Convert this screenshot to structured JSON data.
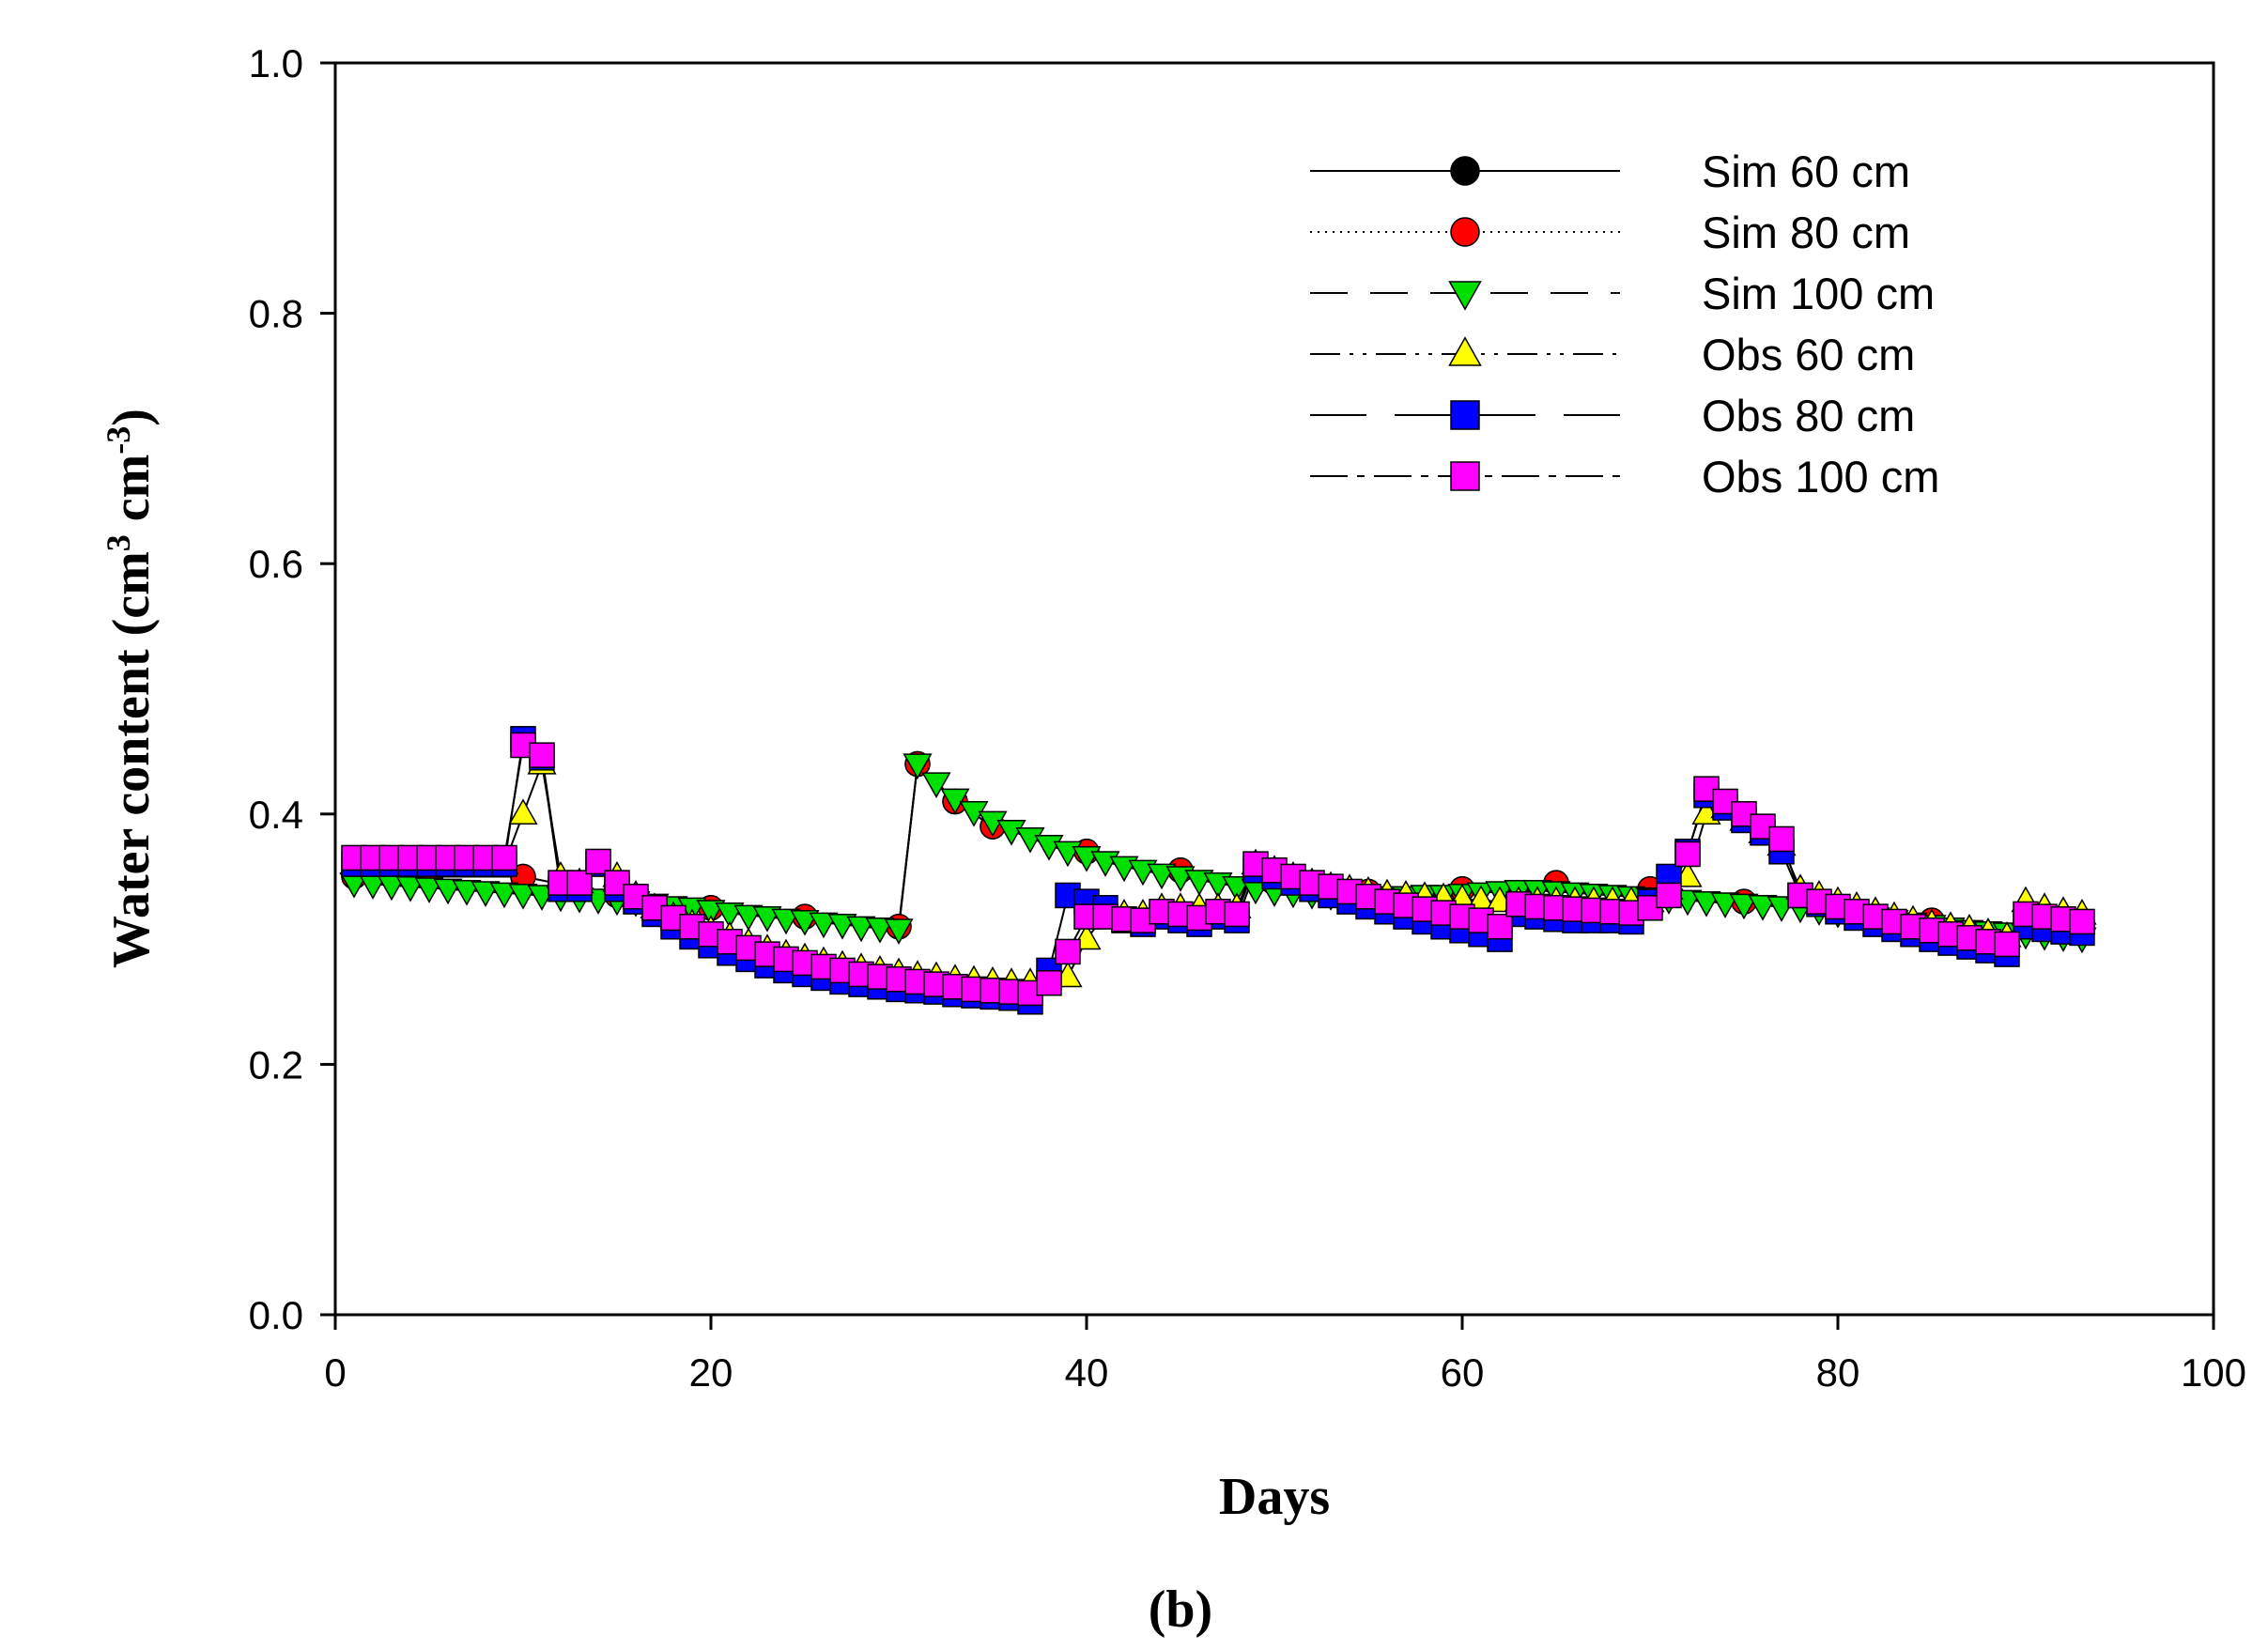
{
  "chart_data": {
    "type": "line",
    "caption": "(b)",
    "xlabel": "Days",
    "ylabel_main": "Water content (cm",
    "ylabel_sup1": "3",
    "ylabel_mid": " cm",
    "ylabel_sup2": "-3",
    "ylabel_end": ")",
    "xlim": [
      0,
      100
    ],
    "ylim": [
      0.0,
      1.0
    ],
    "xticks": [
      0,
      20,
      40,
      60,
      80,
      100
    ],
    "yticks": [
      0.0,
      0.2,
      0.4,
      0.6,
      0.8,
      1.0
    ],
    "xtick_labels": [
      "0",
      "20",
      "40",
      "60",
      "80",
      "100"
    ],
    "ytick_labels": [
      "0.0",
      "0.2",
      "0.4",
      "0.6",
      "0.8",
      "1.0"
    ],
    "legend_position": "top-right",
    "series": [
      {
        "name": "Sim 60 cm",
        "marker": "circle",
        "color": "#000000",
        "dash": "",
        "x": [
          1,
          5,
          10,
          15,
          20,
          25,
          30,
          31,
          33,
          35,
          40,
          45,
          50,
          55,
          60,
          65,
          70,
          75,
          80,
          85,
          90,
          93
        ],
        "y": [
          0.35,
          0.35,
          0.35,
          0.335,
          0.325,
          0.318,
          0.31,
          0.44,
          0.41,
          0.39,
          0.37,
          0.355,
          0.345,
          0.338,
          0.34,
          0.345,
          0.34,
          0.33,
          0.325,
          0.315,
          0.31,
          0.305
        ]
      },
      {
        "name": "Sim 80 cm",
        "marker": "circle",
        "color": "#ff0000",
        "dash": "2 6",
        "x": [
          1,
          5,
          10,
          15,
          20,
          25,
          30,
          31,
          33,
          35,
          40,
          45,
          50,
          55,
          60,
          65,
          70,
          75,
          80,
          85,
          90,
          93
        ],
        "y": [
          0.35,
          0.35,
          0.35,
          0.335,
          0.325,
          0.318,
          0.31,
          0.44,
          0.41,
          0.39,
          0.37,
          0.355,
          0.345,
          0.338,
          0.34,
          0.345,
          0.34,
          0.33,
          0.325,
          0.315,
          0.31,
          0.305
        ]
      },
      {
        "name": "Sim 100 cm",
        "marker": "triangle-down",
        "color": "#00e000",
        "dash": "40 24",
        "x": [
          1,
          2,
          3,
          4,
          5,
          6,
          7,
          8,
          9,
          10,
          11,
          12,
          13,
          14,
          15,
          16,
          17,
          18,
          19,
          20,
          21,
          22,
          23,
          24,
          25,
          26,
          27,
          28,
          29,
          30,
          31,
          32,
          33,
          34,
          35,
          36,
          37,
          38,
          39,
          40,
          41,
          42,
          43,
          44,
          45,
          46,
          47,
          48,
          49,
          50,
          51,
          52,
          53,
          54,
          55,
          56,
          57,
          58,
          59,
          60,
          61,
          62,
          63,
          64,
          65,
          66,
          67,
          68,
          69,
          70,
          71,
          72,
          73,
          74,
          75,
          76,
          77,
          78,
          79,
          80,
          81,
          82,
          83,
          84,
          85,
          86,
          87,
          88,
          89,
          90,
          91,
          92,
          93
        ],
        "y": [
          0.345,
          0.344,
          0.343,
          0.342,
          0.341,
          0.34,
          0.339,
          0.338,
          0.337,
          0.336,
          0.335,
          0.334,
          0.333,
          0.332,
          0.331,
          0.33,
          0.328,
          0.326,
          0.325,
          0.323,
          0.321,
          0.319,
          0.318,
          0.316,
          0.315,
          0.313,
          0.312,
          0.31,
          0.309,
          0.308,
          0.44,
          0.425,
          0.412,
          0.402,
          0.394,
          0.387,
          0.381,
          0.375,
          0.37,
          0.366,
          0.362,
          0.358,
          0.355,
          0.352,
          0.35,
          0.347,
          0.345,
          0.342,
          0.34,
          0.338,
          0.337,
          0.336,
          0.335,
          0.335,
          0.334,
          0.334,
          0.334,
          0.335,
          0.335,
          0.336,
          0.337,
          0.338,
          0.339,
          0.339,
          0.338,
          0.337,
          0.336,
          0.335,
          0.334,
          0.333,
          0.332,
          0.331,
          0.33,
          0.329,
          0.328,
          0.327,
          0.326,
          0.325,
          0.323,
          0.321,
          0.319,
          0.317,
          0.315,
          0.313,
          0.311,
          0.309,
          0.307,
          0.306,
          0.305,
          0.304,
          0.303,
          0.302,
          0.301
        ]
      },
      {
        "name": "Obs 60 cm",
        "marker": "triangle-up",
        "color": "#ffff00",
        "dash": "32 10 4 10 4 10",
        "x": [
          1,
          2,
          3,
          4,
          5,
          6,
          7,
          8,
          9,
          10,
          11,
          12,
          13,
          14,
          15,
          16,
          17,
          18,
          19,
          20,
          21,
          22,
          23,
          24,
          25,
          26,
          27,
          28,
          29,
          30,
          31,
          32,
          33,
          34,
          35,
          36,
          37,
          38,
          39,
          40,
          41,
          42,
          43,
          44,
          45,
          46,
          47,
          48,
          49,
          50,
          51,
          52,
          53,
          54,
          55,
          56,
          57,
          58,
          59,
          60,
          61,
          62,
          63,
          64,
          65,
          66,
          67,
          68,
          69,
          70,
          71,
          72,
          73,
          74,
          75,
          76,
          77,
          78,
          79,
          80,
          81,
          82,
          83,
          84,
          85,
          86,
          87,
          88,
          89,
          90,
          91,
          92,
          93
        ],
        "y": [
          0.36,
          0.36,
          0.36,
          0.36,
          0.36,
          0.36,
          0.36,
          0.36,
          0.36,
          0.4,
          0.44,
          0.35,
          0.345,
          0.36,
          0.35,
          0.335,
          0.325,
          0.318,
          0.312,
          0.307,
          0.302,
          0.297,
          0.292,
          0.288,
          0.285,
          0.282,
          0.279,
          0.277,
          0.275,
          0.273,
          0.271,
          0.27,
          0.268,
          0.267,
          0.266,
          0.265,
          0.265,
          0.27,
          0.27,
          0.3,
          0.32,
          0.32,
          0.32,
          0.325,
          0.325,
          0.325,
          0.325,
          0.325,
          0.36,
          0.355,
          0.35,
          0.345,
          0.342,
          0.34,
          0.338,
          0.336,
          0.335,
          0.334,
          0.333,
          0.332,
          0.331,
          0.33,
          0.33,
          0.33,
          0.33,
          0.33,
          0.33,
          0.33,
          0.33,
          0.33,
          0.34,
          0.35,
          0.4,
          0.405,
          0.395,
          0.385,
          0.375,
          0.34,
          0.335,
          0.33,
          0.326,
          0.322,
          0.318,
          0.315,
          0.312,
          0.31,
          0.308,
          0.305,
          0.302,
          0.33,
          0.325,
          0.322,
          0.32
        ]
      },
      {
        "name": "Obs 80 cm",
        "marker": "square",
        "color": "#0000ff",
        "dash": "60 30",
        "x": [
          1,
          2,
          3,
          4,
          5,
          6,
          7,
          8,
          9,
          10,
          11,
          12,
          13,
          14,
          15,
          16,
          17,
          18,
          19,
          20,
          21,
          22,
          23,
          24,
          25,
          26,
          27,
          28,
          29,
          30,
          31,
          32,
          33,
          34,
          35,
          36,
          37,
          38,
          39,
          40,
          41,
          42,
          43,
          44,
          45,
          46,
          47,
          48,
          49,
          50,
          51,
          52,
          53,
          54,
          55,
          56,
          57,
          58,
          59,
          60,
          61,
          62,
          63,
          64,
          65,
          66,
          67,
          68,
          69,
          70,
          71,
          72,
          73,
          74,
          75,
          76,
          77,
          78,
          79,
          80,
          81,
          82,
          83,
          84,
          85,
          86,
          87,
          88,
          89,
          90,
          91,
          92,
          93
        ],
        "y": [
          0.36,
          0.36,
          0.36,
          0.36,
          0.36,
          0.36,
          0.36,
          0.36,
          0.36,
          0.46,
          0.445,
          0.34,
          0.34,
          0.36,
          0.34,
          0.33,
          0.32,
          0.31,
          0.302,
          0.295,
          0.289,
          0.284,
          0.279,
          0.275,
          0.272,
          0.269,
          0.266,
          0.264,
          0.262,
          0.26,
          0.259,
          0.258,
          0.256,
          0.255,
          0.254,
          0.253,
          0.25,
          0.275,
          0.335,
          0.33,
          0.325,
          0.315,
          0.312,
          0.318,
          0.315,
          0.312,
          0.318,
          0.315,
          0.355,
          0.35,
          0.345,
          0.34,
          0.335,
          0.33,
          0.326,
          0.322,
          0.318,
          0.314,
          0.31,
          0.307,
          0.304,
          0.3,
          0.32,
          0.318,
          0.316,
          0.315,
          0.315,
          0.315,
          0.314,
          0.33,
          0.35,
          0.37,
          0.415,
          0.405,
          0.395,
          0.385,
          0.37,
          0.335,
          0.328,
          0.322,
          0.317,
          0.312,
          0.308,
          0.304,
          0.3,
          0.297,
          0.294,
          0.291,
          0.288,
          0.31,
          0.308,
          0.306,
          0.305
        ]
      },
      {
        "name": "Obs 100 cm",
        "marker": "square",
        "color": "#ff00ff",
        "dash": "40 10 8 10",
        "x": [
          1,
          2,
          3,
          4,
          5,
          6,
          7,
          8,
          9,
          10,
          11,
          12,
          13,
          14,
          15,
          16,
          17,
          18,
          19,
          20,
          21,
          22,
          23,
          24,
          25,
          26,
          27,
          28,
          29,
          30,
          31,
          32,
          33,
          34,
          35,
          36,
          37,
          38,
          39,
          40,
          41,
          42,
          43,
          44,
          45,
          46,
          47,
          48,
          49,
          50,
          51,
          52,
          53,
          54,
          55,
          56,
          57,
          58,
          59,
          60,
          61,
          62,
          63,
          64,
          65,
          66,
          67,
          68,
          69,
          70,
          71,
          72,
          73,
          74,
          75,
          76,
          77,
          78,
          79,
          80,
          81,
          82,
          83,
          84,
          85,
          86,
          87,
          88,
          89,
          90,
          91,
          92,
          93
        ],
        "y": [
          0.365,
          0.365,
          0.365,
          0.365,
          0.365,
          0.365,
          0.365,
          0.365,
          0.365,
          0.455,
          0.447,
          0.345,
          0.345,
          0.362,
          0.345,
          0.334,
          0.325,
          0.317,
          0.31,
          0.304,
          0.298,
          0.293,
          0.288,
          0.284,
          0.281,
          0.278,
          0.275,
          0.272,
          0.27,
          0.268,
          0.266,
          0.264,
          0.262,
          0.26,
          0.259,
          0.258,
          0.257,
          0.265,
          0.29,
          0.318,
          0.318,
          0.316,
          0.315,
          0.322,
          0.32,
          0.317,
          0.322,
          0.32,
          0.36,
          0.355,
          0.35,
          0.345,
          0.342,
          0.338,
          0.334,
          0.33,
          0.327,
          0.324,
          0.321,
          0.318,
          0.315,
          0.31,
          0.328,
          0.326,
          0.325,
          0.324,
          0.323,
          0.322,
          0.321,
          0.325,
          0.335,
          0.368,
          0.42,
          0.41,
          0.4,
          0.39,
          0.38,
          0.335,
          0.33,
          0.326,
          0.322,
          0.318,
          0.314,
          0.31,
          0.307,
          0.304,
          0.301,
          0.298,
          0.296,
          0.32,
          0.318,
          0.316,
          0.314
        ]
      }
    ]
  }
}
